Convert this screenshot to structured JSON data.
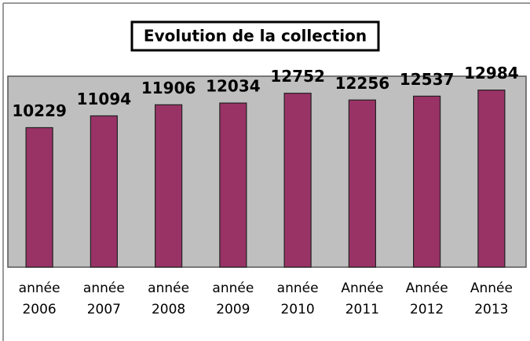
{
  "chart_data": {
    "type": "bar",
    "title": "Evolution de la collection",
    "categories": [
      "année 2006",
      "année 2007",
      "année 2008",
      "année 2009",
      "année 2010",
      "Année 2011",
      "Année 2012",
      "Année 2013"
    ],
    "values": [
      10229,
      11094,
      11906,
      12034,
      12752,
      12256,
      12537,
      12984
    ],
    "color": "#993366",
    "ylim": [
      0,
      14000
    ]
  }
}
